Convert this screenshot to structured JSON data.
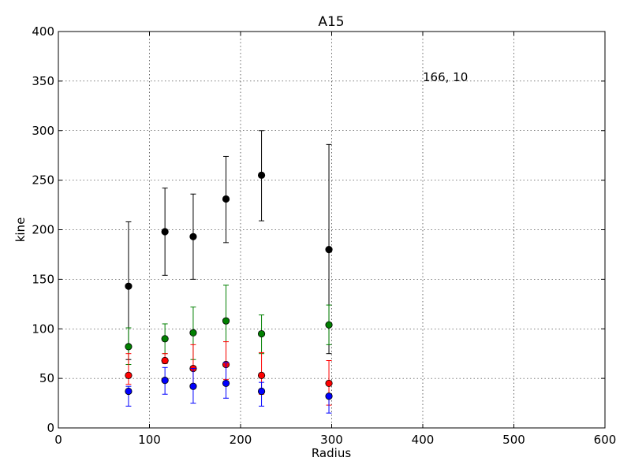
{
  "chart_data": {
    "type": "scatter",
    "title": "A15",
    "xlabel": "Radius",
    "ylabel": "kine",
    "xlim": [
      0,
      600
    ],
    "ylim": [
      0,
      400
    ],
    "xticks": [
      0,
      100,
      200,
      300,
      400,
      500,
      600
    ],
    "yticks": [
      0,
      50,
      100,
      150,
      200,
      250,
      300,
      350,
      400
    ],
    "grid": true,
    "annotation": {
      "text": "166, 10",
      "x": 400,
      "y": 350
    },
    "x": [
      77,
      117,
      148,
      184,
      223,
      297
    ],
    "series": [
      {
        "color": "#000000",
        "y": [
          143,
          198,
          193,
          231,
          255,
          180
        ],
        "err_low": [
          69,
          154,
          150,
          187,
          209,
          75
        ],
        "err_high": [
          208,
          242,
          236,
          274,
          300,
          286
        ]
      },
      {
        "color": "#008000",
        "y": [
          82,
          90,
          96,
          108,
          95,
          104
        ],
        "err_low": [
          64,
          75,
          69,
          64,
          75,
          84
        ],
        "err_high": [
          101,
          105,
          122,
          144,
          114,
          124
        ]
      },
      {
        "color": "#ff0000",
        "y": [
          53,
          68,
          60,
          64,
          53,
          45
        ],
        "err_low": [
          44,
          65,
          42,
          49,
          34,
          23
        ],
        "err_high": [
          75,
          75,
          84,
          87,
          76,
          68
        ]
      },
      {
        "color": "#0000ff",
        "y": [
          37,
          48,
          42,
          45,
          37,
          32
        ],
        "err_low": [
          22,
          34,
          25,
          30,
          22,
          15
        ],
        "err_high": [
          42,
          61,
          60,
          66,
          46,
          32
        ]
      }
    ]
  }
}
